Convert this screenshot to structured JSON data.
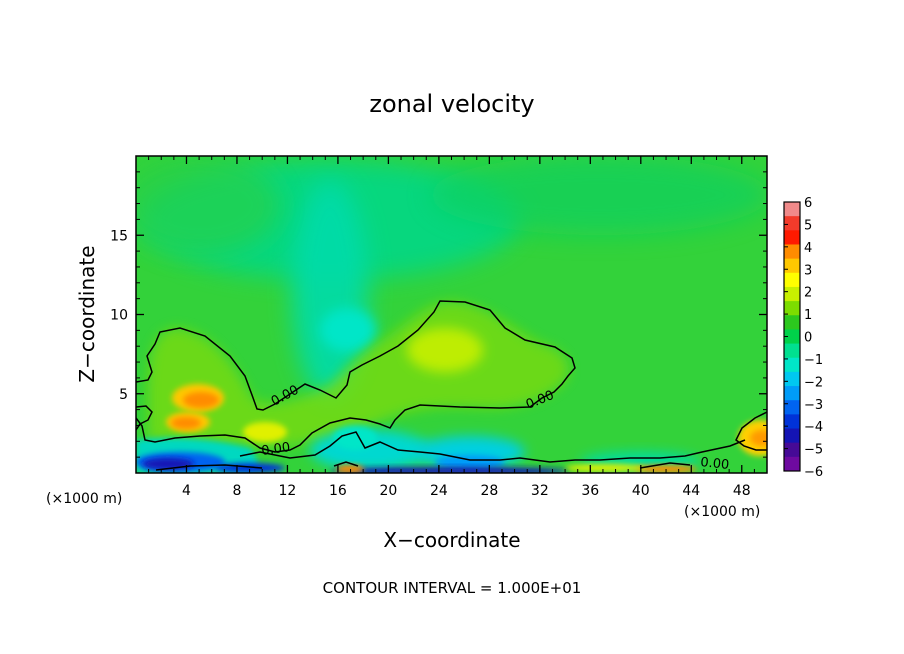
{
  "chart_data": {
    "type": "heatmap",
    "title": "zonal velocity",
    "xlabel": "X−coordinate",
    "ylabel": "Z−coordinate",
    "x_unit_left": "(×1000 m)",
    "x_unit_right": "(×1000 m)",
    "footer": "CONTOUR INTERVAL = 1.000E+01",
    "xlim": [
      0,
      50
    ],
    "ylim": [
      0,
      20
    ],
    "xticks": [
      4,
      8,
      12,
      16,
      20,
      24,
      28,
      32,
      36,
      40,
      44,
      48
    ],
    "yticks": [
      5,
      10,
      15
    ],
    "colorbar": {
      "ticks": [
        "6",
        "5",
        "4",
        "3",
        "2",
        "1",
        "0",
        "−1",
        "−2",
        "−3",
        "−4",
        "−5",
        "−6"
      ],
      "range": [
        -6,
        6
      ],
      "colors": [
        "#f08a8a",
        "#f23b2b",
        "#ff1a00",
        "#ff8c00",
        "#ffc800",
        "#ffff00",
        "#c8f000",
        "#7ddd00",
        "#2cc81e",
        "#00d24a",
        "#00e090",
        "#00e6c8",
        "#00c8f0",
        "#009cf8",
        "#0064f0",
        "#0032d8",
        "#1414b4",
        "#460a96",
        "#6e0aa0"
      ]
    },
    "contour_labels": [
      "0.00",
      "0.00",
      "0.00",
      "0.00"
    ],
    "background_value": 0,
    "features": [
      {
        "kind": "positive",
        "x": 4.8,
        "z": 4.9,
        "value": 3.5
      },
      {
        "kind": "positive",
        "x": 4.6,
        "z": 3.2,
        "value": 3.0
      },
      {
        "kind": "positive",
        "x": 11,
        "z": 2.6,
        "value": 1.5
      },
      {
        "kind": "positive",
        "x": 24.5,
        "z": 8.0,
        "value": 1.0
      },
      {
        "kind": "positive",
        "x": 49,
        "z": 2.3,
        "value": 2.5
      },
      {
        "kind": "positive",
        "x": 41,
        "z": 0.4,
        "value": 3.5
      },
      {
        "kind": "positive",
        "x": 16.5,
        "z": 0.4,
        "value": 3.0
      },
      {
        "kind": "negative",
        "x": 4,
        "z": 0.6,
        "value": -4.5
      },
      {
        "kind": "negative",
        "x": 24,
        "z": 1.0,
        "value": -2.5
      },
      {
        "kind": "negative",
        "x": 28,
        "z": 0.3,
        "value": -3.5
      },
      {
        "kind": "negative",
        "x": 17,
        "z": 2.5,
        "value": -2.5
      },
      {
        "kind": "negative",
        "x": 16,
        "z": 9.0,
        "value": -1.5
      },
      {
        "kind": "negative",
        "x": 17,
        "z": 15.5,
        "value": -1.0
      }
    ]
  }
}
